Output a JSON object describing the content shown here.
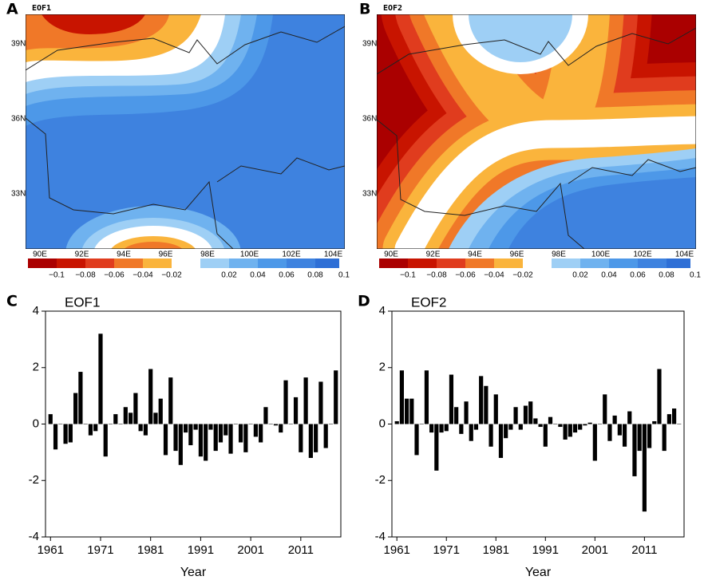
{
  "chart_data": [
    {
      "type": "map",
      "panel": "A",
      "title": "EOF1",
      "lon_labels": [
        "90E",
        "92E",
        "94E",
        "96E",
        "98E",
        "100E",
        "102E",
        "104E"
      ],
      "lat_labels": [
        "39N",
        "36N",
        "33N"
      ],
      "colorbar_labels": [
        "−0.1",
        "−0.08",
        "−0.06",
        "−0.04",
        "−0.02",
        "0.02",
        "0.04",
        "0.06",
        "0.08",
        "0.1"
      ]
    },
    {
      "type": "map",
      "panel": "B",
      "title": "EOF2",
      "lon_labels": [
        "90E",
        "92E",
        "94E",
        "96E",
        "98E",
        "100E",
        "102E",
        "104E"
      ],
      "lat_labels": [
        "39N",
        "36N",
        "33N"
      ],
      "colorbar_labels": [
        "−0.1",
        "−0.08",
        "−0.06",
        "−0.04",
        "−0.02",
        "0.02",
        "0.04",
        "0.06",
        "0.08",
        "0.1"
      ]
    },
    {
      "type": "bar",
      "panel": "C",
      "title": "EOF1",
      "xlabel": "Year",
      "color": "#000000",
      "x": [
        1961,
        1962,
        1963,
        1964,
        1965,
        1966,
        1967,
        1968,
        1969,
        1970,
        1971,
        1972,
        1973,
        1974,
        1975,
        1976,
        1977,
        1978,
        1979,
        1980,
        1981,
        1982,
        1983,
        1984,
        1985,
        1986,
        1987,
        1988,
        1989,
        1990,
        1991,
        1992,
        1993,
        1994,
        1995,
        1996,
        1997,
        1998,
        1999,
        2000,
        2001,
        2002,
        2003,
        2004,
        2005,
        2006,
        2007,
        2008,
        2009,
        2010,
        2011,
        2012,
        2013,
        2014,
        2015,
        2016,
        2017,
        2018
      ],
      "values": [
        0.35,
        -0.9,
        0.0,
        -0.7,
        -0.65,
        1.1,
        1.85,
        0.0,
        -0.4,
        -0.25,
        3.2,
        -1.15,
        0.0,
        0.35,
        0.0,
        0.6,
        0.4,
        1.1,
        -0.25,
        -0.4,
        1.95,
        0.4,
        0.9,
        -1.1,
        1.65,
        -0.95,
        -1.45,
        -0.3,
        -0.75,
        -0.2,
        -1.15,
        -1.3,
        -0.2,
        -0.95,
        -0.65,
        -0.4,
        -1.05,
        0.0,
        -0.65,
        -1.0,
        0.0,
        -0.45,
        -0.65,
        0.6,
        0.0,
        -0.05,
        -0.3,
        1.55,
        0.0,
        0.95,
        -1.0,
        1.65,
        -1.2,
        -1.0,
        1.5,
        -0.85,
        0.0,
        1.9
      ],
      "xlim": [
        1960,
        2019
      ],
      "xticks": [
        1961,
        1971,
        1981,
        1991,
        2001,
        2011
      ],
      "ylim": [
        -4,
        4
      ],
      "yticks": [
        -4,
        -2,
        0,
        2,
        4
      ]
    },
    {
      "type": "bar",
      "panel": "D",
      "title": "EOF2",
      "xlabel": "Year",
      "color": "#000000",
      "x": [
        1961,
        1962,
        1963,
        1964,
        1965,
        1966,
        1967,
        1968,
        1969,
        1970,
        1971,
        1972,
        1973,
        1974,
        1975,
        1976,
        1977,
        1978,
        1979,
        1980,
        1981,
        1982,
        1983,
        1984,
        1985,
        1986,
        1987,
        1988,
        1989,
        1990,
        1991,
        1992,
        1993,
        1994,
        1995,
        1996,
        1997,
        1998,
        1999,
        2000,
        2001,
        2002,
        2003,
        2004,
        2005,
        2006,
        2007,
        2008,
        2009,
        2010,
        2011,
        2012,
        2013,
        2014,
        2015,
        2016,
        2017,
        2018
      ],
      "values": [
        0.1,
        1.9,
        0.9,
        0.9,
        -1.1,
        0.0,
        1.9,
        -0.3,
        -1.65,
        -0.3,
        -0.25,
        1.75,
        0.6,
        -0.35,
        0.8,
        -0.6,
        -0.2,
        1.7,
        1.35,
        -0.8,
        1.05,
        -1.2,
        -0.5,
        -0.2,
        0.6,
        -0.2,
        0.65,
        0.8,
        0.2,
        -0.1,
        -0.8,
        0.25,
        0.0,
        -0.1,
        -0.55,
        -0.45,
        -0.3,
        -0.2,
        -0.05,
        0.05,
        -1.3,
        0.0,
        1.05,
        -0.6,
        0.3,
        -0.4,
        -0.8,
        0.45,
        -1.85,
        -0.95,
        -3.1,
        -0.85,
        0.1,
        1.95,
        -0.95,
        0.35,
        0.55,
        0.0
      ],
      "xlim": [
        1960,
        2019
      ],
      "xticks": [
        1961,
        1971,
        1981,
        1991,
        2001,
        2011
      ],
      "ylim": [
        -4,
        4
      ],
      "yticks": [
        -4,
        -2,
        0,
        2,
        4
      ]
    }
  ]
}
